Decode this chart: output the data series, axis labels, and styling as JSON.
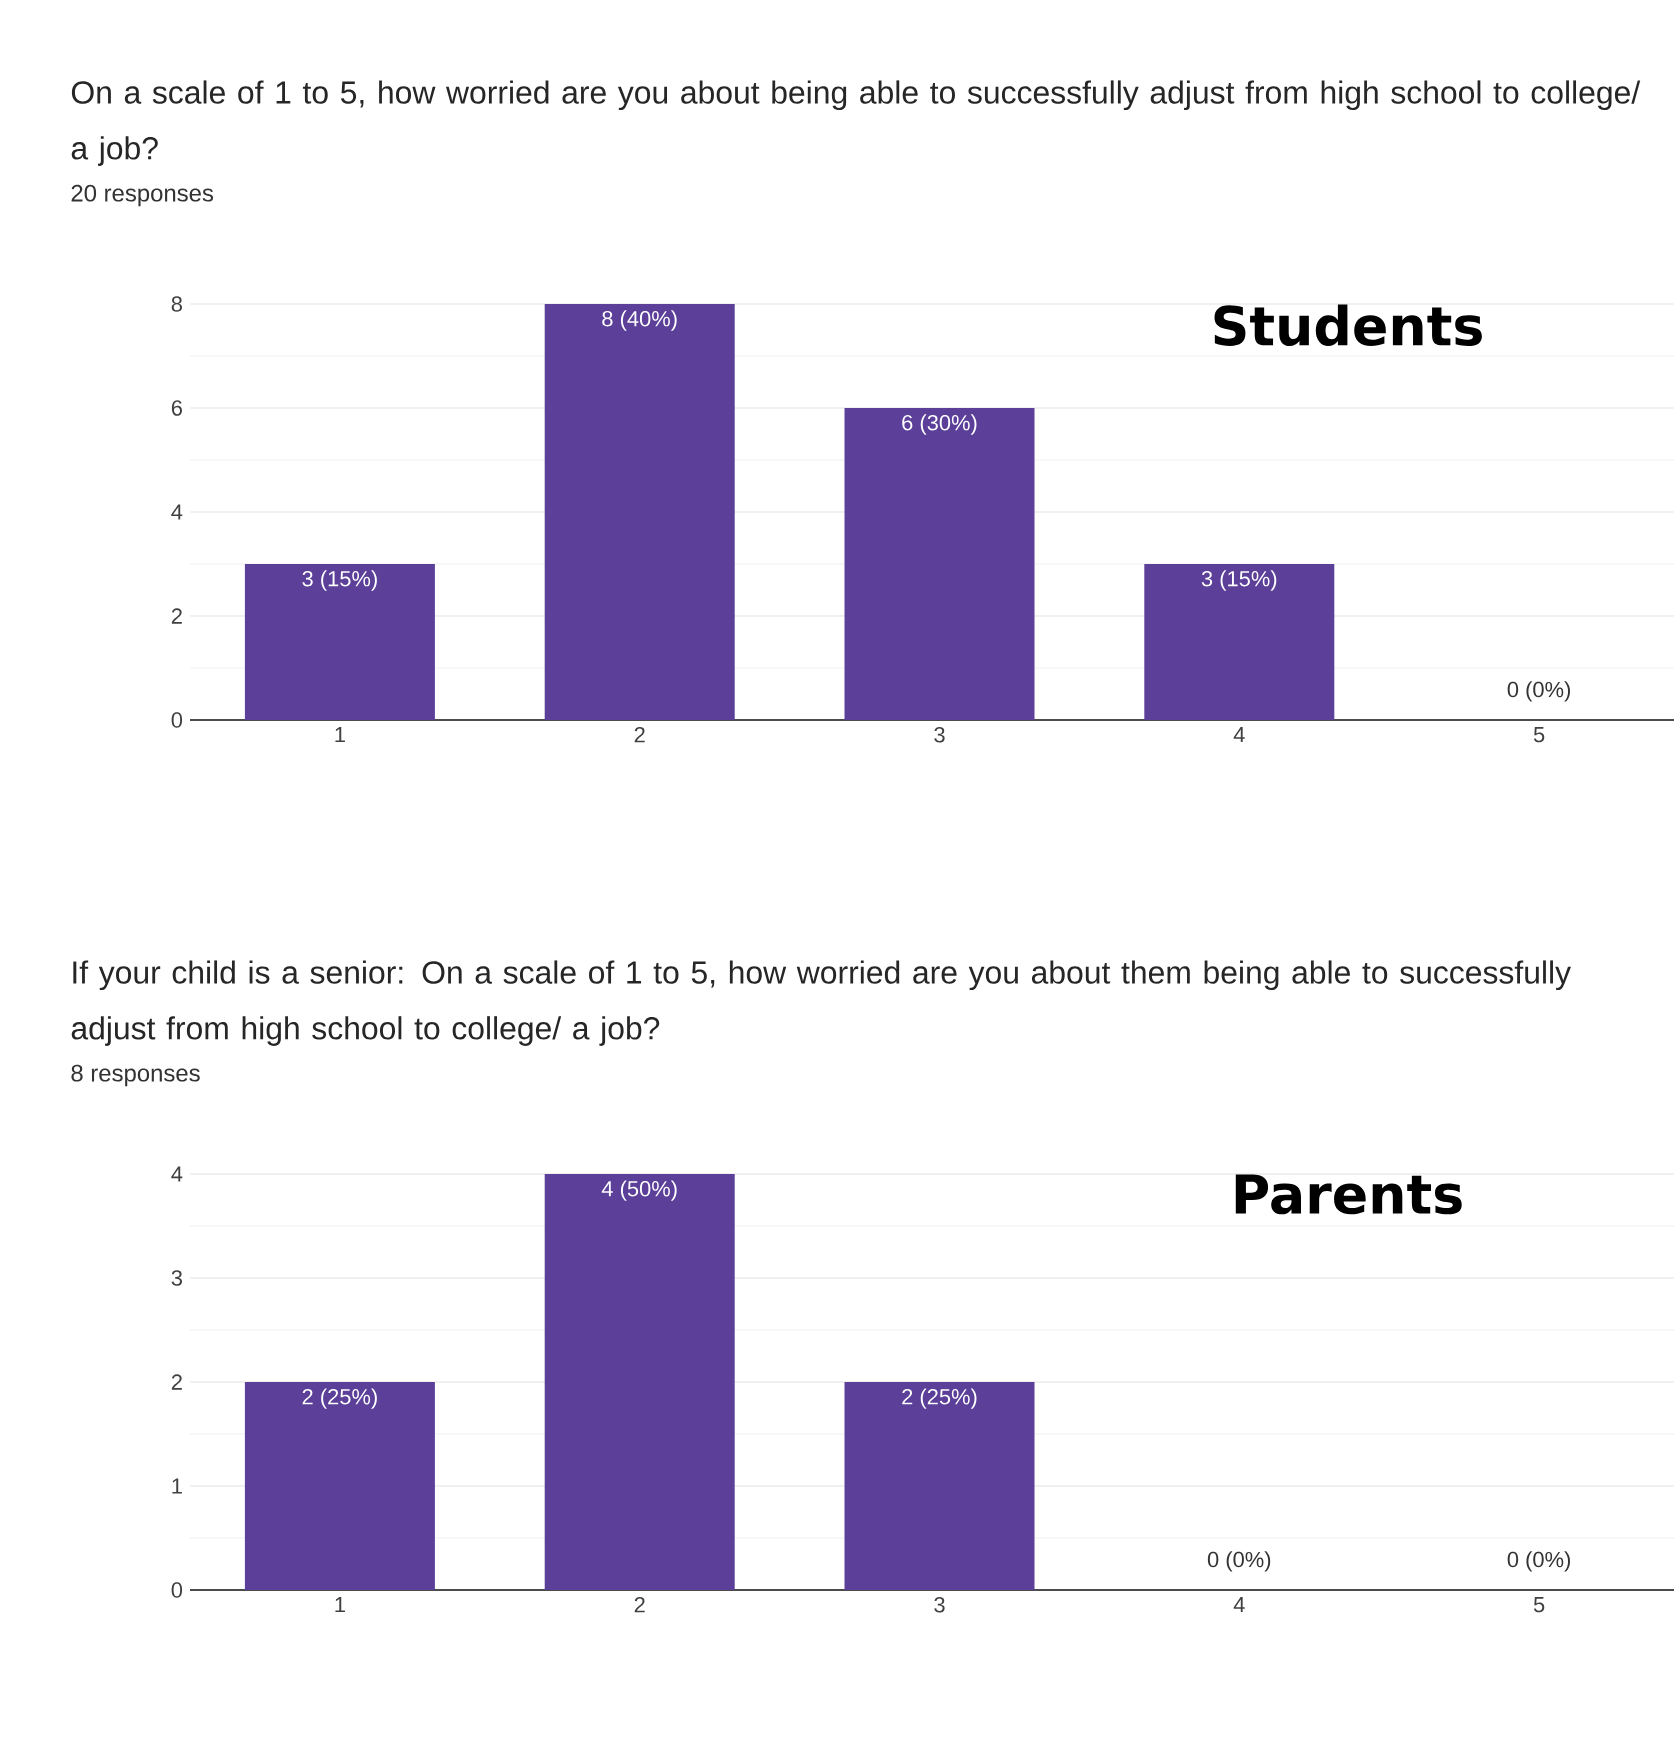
{
  "chart_data": [
    {
      "type": "bar",
      "title": "On a scale of 1 to 5, how worried are you about being able to successfully adjust from high school to college/ a job?",
      "subtitle": "20 responses",
      "annotations": [
        "Students"
      ],
      "categories": [
        "1",
        "2",
        "3",
        "4",
        "5"
      ],
      "values": [
        3,
        8,
        6,
        3,
        0
      ],
      "value_labels": [
        "3 (15%)",
        "8 (40%)",
        "6 (30%)",
        "3 (15%)",
        "0 (0%)"
      ],
      "color": "#5b3f99",
      "ylim": [
        0,
        8
      ],
      "yticks": [
        0,
        2,
        4,
        6,
        8
      ],
      "grid": "y"
    },
    {
      "type": "bar",
      "title": "If your child is a senior: On a scale of 1 to 5, how worried are you about them being able to successfully adjust from high school to college/ a job?",
      "subtitle": "8 responses",
      "annotations": [
        "Parents"
      ],
      "categories": [
        "1",
        "2",
        "3",
        "4",
        "5"
      ],
      "values": [
        2,
        4,
        2,
        0,
        0
      ],
      "value_labels": [
        "2 (25%)",
        "4 (50%)",
        "2 (25%)",
        "0 (0%)",
        "0 (0%)"
      ],
      "color": "#5b3f99",
      "ylim": [
        0,
        4
      ],
      "yticks": [
        0,
        1,
        2,
        3,
        4
      ],
      "grid": "y"
    }
  ]
}
